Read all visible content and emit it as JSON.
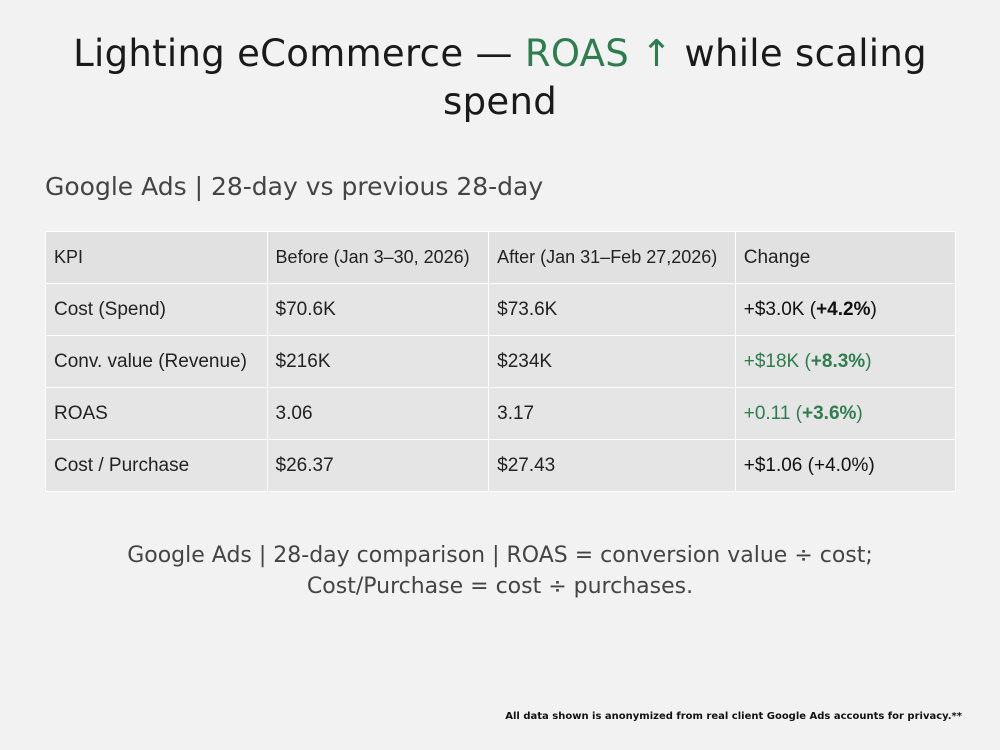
{
  "title": {
    "prefix": "Lighting eCommerce — ",
    "accent": "ROAS ↑",
    "suffix": " while scaling spend"
  },
  "colors": {
    "accent": "#2e7d4f",
    "background": "#f2f2f2",
    "table_cell": "#e5e5e5"
  },
  "subtitle": "Google Ads | 28-day vs previous 28-day",
  "table": {
    "headers": [
      "KPI",
      "Before (Jan 3–30, 2026)",
      "After (Jan 31–Feb 27,2026)",
      "Change"
    ],
    "rows": [
      {
        "kpi": "Cost (Spend)",
        "before": "$70.6K",
        "after": "$73.6K",
        "change_abs": "+$3.0K (",
        "change_pct": "+4.2%",
        "change_close": ")",
        "change_tone": "neutral"
      },
      {
        "kpi": "Conv. value (Revenue)",
        "before": "$216K",
        "after": "$234K",
        "change_abs": "+$18K (",
        "change_pct": "+8.3%",
        "change_close": ")",
        "change_tone": "positive"
      },
      {
        "kpi": "ROAS",
        "before": "3.06",
        "after": "3.17",
        "change_abs": "+0.11 (",
        "change_pct": "+3.6%",
        "change_close": ")",
        "change_tone": "positive"
      },
      {
        "kpi": "Cost / Purchase",
        "before": "$26.37",
        "after": "$27.43",
        "change_full": "+$1.06 (+4.0%)",
        "change_tone": "neutral"
      }
    ]
  },
  "footnote": {
    "line1": "Google Ads | 28-day comparison | ROAS = conversion value ÷ cost;",
    "line2": "Cost/Purchase = cost ÷ purchases."
  },
  "disclaimer": "All data shown is anonymized from real client Google Ads accounts for privacy.**"
}
